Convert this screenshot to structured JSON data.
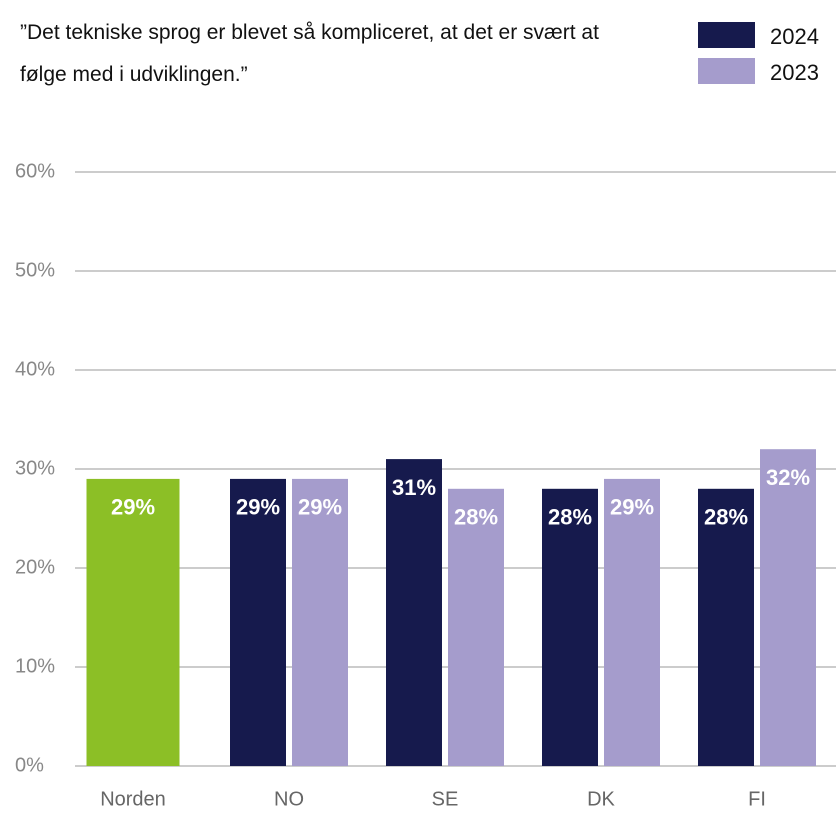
{
  "chart_data": {
    "type": "bar",
    "title": "”Det tekniske sprog er blevet så kompliceret, at det er svært at følge med i udviklingen.”",
    "categories": [
      "Norden",
      "NO",
      "SE",
      "DK",
      "FI"
    ],
    "series": [
      {
        "color": "#8cbf26",
        "values": [
          29,
          null,
          null,
          null,
          null
        ],
        "value_labels": [
          "29%",
          null,
          null,
          null,
          null
        ]
      },
      {
        "name": "2024",
        "color": "#161a4d",
        "values": [
          null,
          29,
          31,
          28,
          28
        ],
        "value_labels": [
          null,
          "29%",
          "31%",
          "28%",
          "28%"
        ]
      },
      {
        "name": "2023",
        "color": "#a59ccc",
        "values": [
          null,
          29,
          28,
          29,
          32
        ],
        "value_labels": [
          null,
          "29%",
          "28%",
          "29%",
          "32%"
        ]
      }
    ],
    "ylim": [
      0,
      60
    ],
    "yticks": [
      {
        "value": 0,
        "label": "0%"
      },
      {
        "value": 10,
        "label": "10%"
      },
      {
        "value": 20,
        "label": "20%"
      },
      {
        "value": 30,
        "label": "30%"
      },
      {
        "value": 40,
        "label": "40%"
      },
      {
        "value": 50,
        "label": "50%"
      },
      {
        "value": 60,
        "label": "60%"
      }
    ],
    "grid": true,
    "legend": "top-right"
  }
}
